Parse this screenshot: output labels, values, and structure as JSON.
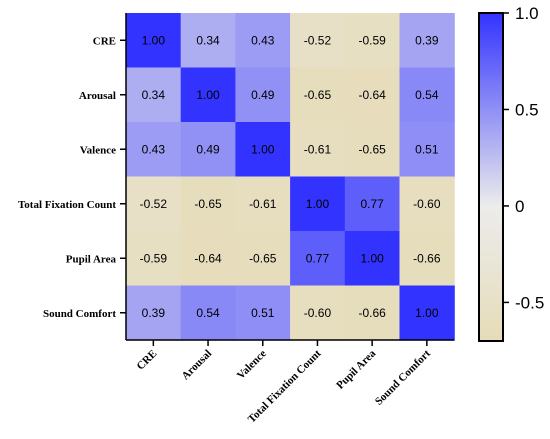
{
  "chart_data": {
    "type": "heatmap",
    "title": "",
    "rows": [
      "CRE",
      "Arousal",
      "Valence",
      "Total Fixation Count",
      "Pupil Area",
      "Sound Comfort"
    ],
    "columns": [
      "CRE",
      "Arousal",
      "Valence",
      "Total Fixation Count",
      "Pupil Area",
      "Sound Comfort"
    ],
    "values": [
      [
        1.0,
        0.34,
        0.43,
        -0.52,
        -0.59,
        0.39
      ],
      [
        0.34,
        1.0,
        0.49,
        -0.65,
        -0.64,
        0.54
      ],
      [
        0.43,
        0.49,
        1.0,
        -0.61,
        -0.65,
        0.51
      ],
      [
        -0.52,
        -0.65,
        -0.61,
        1.0,
        0.77,
        -0.6
      ],
      [
        -0.59,
        -0.64,
        -0.65,
        0.77,
        1.0,
        -0.66
      ],
      [
        0.39,
        0.54,
        0.51,
        -0.6,
        -0.66,
        1.0
      ]
    ],
    "value_labels": [
      [
        "1.00",
        "0.34",
        "0.43",
        "-0.52",
        "-0.59",
        "0.39"
      ],
      [
        "0.34",
        "1.00",
        "0.49",
        "-0.65",
        "-0.64",
        "0.54"
      ],
      [
        "0.43",
        "0.49",
        "1.00",
        "-0.61",
        "-0.65",
        "0.51"
      ],
      [
        "-0.52",
        "-0.65",
        "-0.61",
        "1.00",
        "0.77",
        "-0.60"
      ],
      [
        "-0.59",
        "-0.64",
        "-0.65",
        "0.77",
        "1.00",
        "-0.66"
      ],
      [
        "0.39",
        "0.54",
        "0.51",
        "-0.60",
        "-0.66",
        "1.00"
      ]
    ],
    "colorbar": {
      "range": [
        -0.7,
        1.0
      ],
      "ticks": [
        1.0,
        0.5,
        0,
        -0.5
      ],
      "tick_labels": [
        "1.0",
        "0.5",
        "0",
        "-0.5"
      ],
      "colors": {
        "low": "#e6dcb9",
        "mid": "#ececec",
        "high": "#3333ff"
      }
    },
    "legend_position": "right",
    "grid": false
  }
}
